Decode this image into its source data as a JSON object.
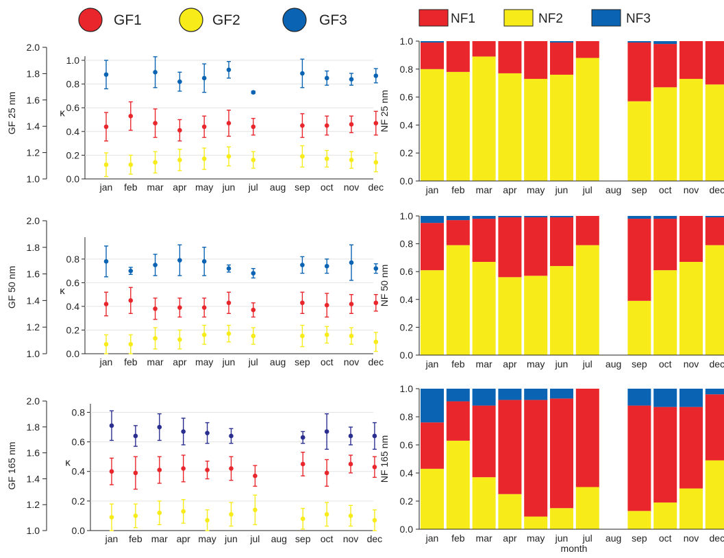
{
  "legend_gf": [
    {
      "label": "GF1",
      "color": "#e8262c"
    },
    {
      "label": "GF2",
      "color": "#f7ec1a"
    },
    {
      "label": "GF3",
      "color": "#0a64b3"
    }
  ],
  "legend_nf": [
    {
      "label": "NF1",
      "color": "#e8262c"
    },
    {
      "label": "NF2",
      "color": "#f7ec1a"
    },
    {
      "label": "NF3",
      "color": "#0a64b3"
    }
  ],
  "colors": {
    "gf1": "#e8262c",
    "gf2": "#f7ec1a",
    "gf3": "#0a64b3",
    "gf3_165": "#2a2f8f",
    "nf1": "#e8262c",
    "nf2": "#f7ec1a",
    "nf3": "#0a64b3"
  },
  "xlabel_bottom": "month",
  "chart_data": [
    {
      "type": "scatter",
      "ylabel_left": "GF 25 nm",
      "ylabel_inner": "κ",
      "gf_ticks": [
        "1.0",
        "1.2",
        "1.4",
        "1.6",
        "1.8",
        "2.0"
      ],
      "kappa_ticks": [
        "0.0",
        "0.2",
        "0.4",
        "0.6",
        "0.8",
        "1.0"
      ],
      "kappa_ylim": [
        0,
        1.0
      ],
      "categories": [
        "jan",
        "feb",
        "mar",
        "apr",
        "may",
        "jun",
        "jul",
        "aug",
        "sep",
        "oct",
        "nov",
        "dec"
      ],
      "series": [
        {
          "name": "GF1",
          "values": [
            0.44,
            0.53,
            0.47,
            0.41,
            0.44,
            0.47,
            0.44,
            null,
            0.45,
            0.45,
            0.46,
            0.47
          ],
          "err": [
            0.12,
            0.12,
            0.12,
            0.09,
            0.09,
            0.11,
            0.07,
            null,
            0.1,
            0.08,
            0.07,
            0.1
          ]
        },
        {
          "name": "GF2",
          "values": [
            0.12,
            0.12,
            0.14,
            0.16,
            0.17,
            0.19,
            0.16,
            null,
            0.19,
            0.17,
            0.16,
            0.14
          ],
          "err": [
            0.1,
            0.08,
            0.09,
            0.09,
            0.09,
            0.08,
            0.07,
            null,
            0.09,
            0.07,
            0.07,
            0.08
          ]
        },
        {
          "name": "GF3",
          "values": [
            0.88,
            null,
            0.9,
            0.82,
            0.85,
            0.92,
            0.73,
            null,
            0.89,
            0.85,
            0.84,
            0.87
          ],
          "err": [
            0.12,
            null,
            0.13,
            0.08,
            0.12,
            0.07,
            0.01,
            null,
            0.12,
            0.06,
            0.05,
            0.06
          ]
        }
      ]
    },
    {
      "type": "scatter",
      "ylabel_left": "GF 50 nm",
      "ylabel_inner": "κ",
      "gf_ticks": [
        "1.0",
        "1.2",
        "1.4",
        "1.6",
        "1.8",
        "2.0"
      ],
      "kappa_ticks": [
        "0.0",
        "0.2",
        "0.4",
        "0.6",
        "0.8"
      ],
      "kappa_ylim": [
        0,
        0.95
      ],
      "categories": [
        "jan",
        "feb",
        "mar",
        "apr",
        "may",
        "jun",
        "jul",
        "aug",
        "sep",
        "oct",
        "nov",
        "dec"
      ],
      "series": [
        {
          "name": "GF1",
          "values": [
            0.42,
            0.45,
            0.38,
            0.39,
            0.39,
            0.43,
            0.37,
            null,
            0.43,
            0.41,
            0.42,
            0.43
          ],
          "err": [
            0.1,
            0.11,
            0.09,
            0.08,
            0.08,
            0.09,
            0.06,
            null,
            0.09,
            0.1,
            0.08,
            0.07
          ]
        },
        {
          "name": "GF2",
          "values": [
            0.08,
            0.08,
            0.13,
            0.12,
            0.16,
            0.17,
            0.15,
            null,
            0.15,
            0.16,
            0.15,
            0.1
          ],
          "err": [
            0.08,
            0.08,
            0.09,
            0.08,
            0.08,
            0.07,
            0.07,
            null,
            0.09,
            0.07,
            0.07,
            0.08
          ]
        },
        {
          "name": "GF3",
          "values": [
            0.78,
            0.7,
            0.75,
            0.79,
            0.78,
            0.72,
            0.68,
            null,
            0.75,
            0.74,
            0.77,
            0.72
          ],
          "err": [
            0.13,
            0.03,
            0.09,
            0.13,
            0.12,
            0.03,
            0.04,
            null,
            0.07,
            0.06,
            0.15,
            0.04
          ]
        }
      ]
    },
    {
      "type": "scatter",
      "ylabel_left": "GF 165 nm",
      "ylabel_inner": "κ",
      "gf_ticks": [
        "1.0",
        "1.2",
        "1.4",
        "1.6",
        "1.8",
        "2.0"
      ],
      "kappa_ticks": [
        "0.0",
        "0.2",
        "0.4",
        "0.6",
        "0.8"
      ],
      "kappa_ylim": [
        0,
        0.83
      ],
      "categories": [
        "jan",
        "feb",
        "mar",
        "apr",
        "may",
        "jun",
        "jul",
        "aug",
        "sep",
        "oct",
        "nov",
        "dec"
      ],
      "series": [
        {
          "name": "GF1",
          "values": [
            0.4,
            0.39,
            0.41,
            0.42,
            0.41,
            0.42,
            0.37,
            null,
            0.45,
            0.39,
            0.45,
            0.43
          ],
          "err": [
            0.09,
            0.11,
            0.09,
            0.09,
            0.06,
            0.08,
            0.07,
            null,
            0.08,
            0.09,
            0.06,
            0.07
          ]
        },
        {
          "name": "GF2",
          "values": [
            0.09,
            0.1,
            0.12,
            0.13,
            0.07,
            0.11,
            0.14,
            null,
            0.08,
            0.11,
            0.1,
            0.07
          ],
          "err": [
            0.09,
            0.08,
            0.08,
            0.08,
            0.07,
            0.08,
            0.1,
            null,
            0.07,
            0.08,
            0.07,
            0.07
          ]
        },
        {
          "name": "GF3",
          "values": [
            0.71,
            0.64,
            0.7,
            0.67,
            0.66,
            0.64,
            null,
            null,
            0.63,
            0.67,
            0.64,
            0.64
          ],
          "err": [
            0.1,
            0.07,
            0.09,
            0.09,
            0.07,
            0.05,
            null,
            null,
            0.04,
            0.12,
            0.06,
            0.09
          ]
        }
      ]
    },
    {
      "type": "bar",
      "stacked": true,
      "ylabel": "NF 25 nm",
      "ylim": [
        0,
        1.0
      ],
      "yticks": [
        "0.0",
        "0.2",
        "0.4",
        "0.6",
        "0.8",
        "1.0"
      ],
      "categories": [
        "jan",
        "feb",
        "mar",
        "apr",
        "may",
        "jun",
        "jul",
        "aug",
        "sep",
        "oct",
        "nov",
        "dec"
      ],
      "series": [
        {
          "name": "NF2",
          "values": [
            0.8,
            0.78,
            0.89,
            0.77,
            0.73,
            0.76,
            0.88,
            null,
            0.57,
            0.67,
            0.73,
            0.69
          ]
        },
        {
          "name": "NF1",
          "values": [
            0.19,
            0.22,
            0.11,
            0.23,
            0.27,
            0.23,
            0.12,
            null,
            0.42,
            0.31,
            0.27,
            0.31
          ]
        },
        {
          "name": "NF3",
          "values": [
            0.01,
            0.0,
            0.0,
            0.0,
            0.0,
            0.01,
            0.0,
            null,
            0.01,
            0.02,
            0.0,
            0.0
          ]
        }
      ]
    },
    {
      "type": "bar",
      "stacked": true,
      "ylabel": "NF 50 nm",
      "ylim": [
        0,
        1.0
      ],
      "yticks": [
        "0.0",
        "0.2",
        "0.4",
        "0.6",
        "0.8",
        "1.0"
      ],
      "categories": [
        "jan",
        "feb",
        "mar",
        "apr",
        "may",
        "jun",
        "jul",
        "aug",
        "sep",
        "oct",
        "nov",
        "dec"
      ],
      "series": [
        {
          "name": "NF2",
          "values": [
            0.61,
            0.79,
            0.67,
            0.56,
            0.57,
            0.64,
            0.79,
            null,
            0.39,
            0.61,
            0.67,
            0.79
          ]
        },
        {
          "name": "NF1",
          "values": [
            0.34,
            0.18,
            0.31,
            0.43,
            0.42,
            0.35,
            0.21,
            null,
            0.59,
            0.37,
            0.33,
            0.2
          ]
        },
        {
          "name": "NF3",
          "values": [
            0.05,
            0.03,
            0.02,
            0.01,
            0.01,
            0.01,
            0.0,
            null,
            0.02,
            0.02,
            0.0,
            0.01
          ]
        }
      ]
    },
    {
      "type": "bar",
      "stacked": true,
      "ylabel": "NF 165 nm",
      "ylim": [
        0,
        1.0
      ],
      "yticks": [
        "0.0",
        "0.2",
        "0.4",
        "0.6",
        "0.8",
        "1.0"
      ],
      "categories": [
        "jan",
        "feb",
        "mar",
        "apr",
        "may",
        "jun",
        "jul",
        "aug",
        "sep",
        "oct",
        "nov",
        "dec"
      ],
      "series": [
        {
          "name": "NF2",
          "values": [
            0.43,
            0.63,
            0.37,
            0.25,
            0.09,
            0.15,
            0.3,
            null,
            0.13,
            0.19,
            0.29,
            0.49
          ]
        },
        {
          "name": "NF1",
          "values": [
            0.33,
            0.28,
            0.51,
            0.67,
            0.83,
            0.78,
            0.7,
            null,
            0.75,
            0.68,
            0.58,
            0.47
          ]
        },
        {
          "name": "NF3",
          "values": [
            0.24,
            0.09,
            0.12,
            0.08,
            0.08,
            0.07,
            0.0,
            null,
            0.12,
            0.13,
            0.13,
            0.04
          ]
        }
      ]
    }
  ]
}
